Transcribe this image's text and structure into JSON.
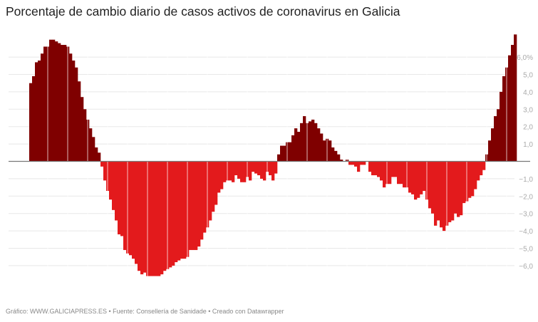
{
  "title": "Porcentaje de cambio diario de casos activos de coronavirus en Galicia",
  "footer": "Gráfico: WWW.GALICIAPRESS.ES • Fuente: Consellería de Sanidade • Creado con Datawrapper",
  "chart_data": {
    "type": "bar",
    "title": "Porcentaje de cambio diario de casos activos de coronavirus en Galicia",
    "xlabel": "",
    "ylabel": "",
    "ylim": [
      -6.6,
      7.3
    ],
    "grid": true,
    "colors": {
      "positive": "#7f0000",
      "negative": "#e31a1c",
      "grid": "#e8e8e8",
      "baseline": "#777777"
    },
    "y_ticks": [
      {
        "value": 6,
        "label": "6,0%"
      },
      {
        "value": 5,
        "label": "5,0"
      },
      {
        "value": 4,
        "label": "4,0"
      },
      {
        "value": 3,
        "label": "3,0"
      },
      {
        "value": 2,
        "label": "2,0"
      },
      {
        "value": 1,
        "label": "1,0"
      },
      {
        "value": -1,
        "label": "−1,0"
      },
      {
        "value": -2,
        "label": "−2,0"
      },
      {
        "value": -3,
        "label": "−3,0"
      },
      {
        "value": -4,
        "label": "−4,0"
      },
      {
        "value": -5,
        "label": "−5,0"
      },
      {
        "value": -6,
        "label": "−6,0"
      }
    ],
    "values": [
      4.5,
      4.9,
      5.7,
      5.8,
      6.2,
      6.6,
      6.6,
      7.0,
      7.0,
      6.9,
      6.8,
      6.7,
      6.7,
      6.6,
      6.2,
      5.8,
      5.4,
      4.6,
      3.7,
      3.0,
      2.4,
      1.9,
      1.4,
      0.8,
      0.5,
      -0.3,
      -1.1,
      -1.7,
      -2.2,
      -2.8,
      -3.4,
      -4.2,
      -4.3,
      -5.1,
      -5.3,
      -5.4,
      -5.6,
      -5.9,
      -6.3,
      -6.5,
      -6.4,
      -6.6,
      -6.6,
      -6.6,
      -6.6,
      -6.6,
      -6.5,
      -6.3,
      -6.2,
      -6.1,
      -6.0,
      -5.8,
      -5.7,
      -5.6,
      -5.6,
      -5.5,
      -5.1,
      -5.1,
      -5.1,
      -4.9,
      -4.5,
      -4.1,
      -3.8,
      -3.4,
      -2.9,
      -2.5,
      -1.8,
      -1.6,
      -1.2,
      -1.1,
      -1.1,
      -1.2,
      -0.8,
      -1.0,
      -1.2,
      -1.2,
      -0.9,
      -1.1,
      -0.6,
      -0.7,
      -0.8,
      -1.0,
      -1.1,
      -0.6,
      -0.8,
      -1.1,
      -0.7,
      0.4,
      0.9,
      0.9,
      1.1,
      1.1,
      1.5,
      1.9,
      1.7,
      2.2,
      2.6,
      2.2,
      2.3,
      2.4,
      2.2,
      1.9,
      1.6,
      1.2,
      1.3,
      1.2,
      0.8,
      0.6,
      0.4,
      0.1,
      0.0,
      0.1,
      -0.2,
      -0.2,
      -0.3,
      -0.6,
      -0.2,
      -0.2,
      0.0,
      -0.6,
      -0.8,
      -0.8,
      -0.9,
      -1.1,
      -1.5,
      -1.3,
      -1.3,
      -0.9,
      -0.9,
      -1.3,
      -1.3,
      -1.5,
      -1.5,
      -1.8,
      -1.9,
      -2.2,
      -2.1,
      -1.9,
      -1.7,
      -2.2,
      -2.7,
      -3.0,
      -3.7,
      -3.4,
      -3.8,
      -4.0,
      -3.7,
      -3.5,
      -3.4,
      -3.0,
      -3.2,
      -3.1,
      -2.4,
      -2.3,
      -2.1,
      -2.0,
      -1.6,
      -1.1,
      -0.8,
      -0.5,
      0.4,
      1.2,
      1.9,
      2.6,
      3.0,
      4.0,
      4.9,
      5.4,
      6.1,
      6.7,
      7.3
    ]
  }
}
